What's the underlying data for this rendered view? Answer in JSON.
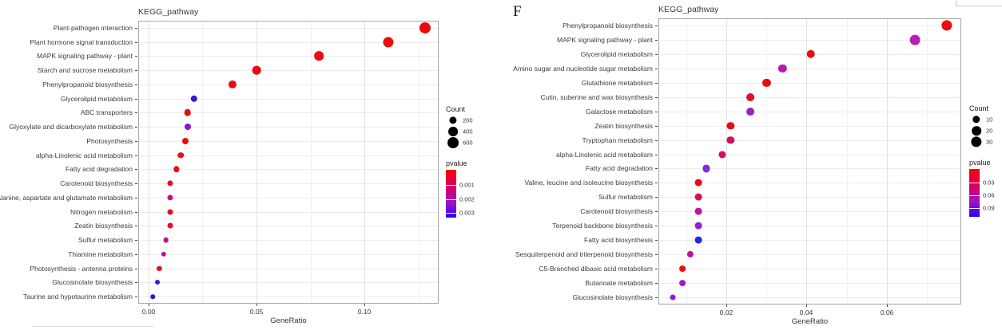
{
  "figure": {
    "panel_label": "F",
    "background": "#ffffff"
  },
  "chart_data": [
    {
      "type": "scatter",
      "title": "KEGG_pathway",
      "xlabel": "GeneRatio",
      "ylabel": "",
      "grid": true,
      "legend_position": "right",
      "xlim": [
        -0.0048,
        0.1344
      ],
      "x_major_ticks": [
        0.0,
        0.05,
        0.1
      ],
      "x_major_tick_labels": [
        "0.00",
        "0.05",
        "0.10"
      ],
      "x_minor_ticks": [
        0.025,
        0.075,
        0.125
      ],
      "legend": {
        "count_title": "Count",
        "count_items": [
          {
            "label": "200",
            "count": 200
          },
          {
            "label": "400",
            "count": 400
          },
          {
            "label": "600",
            "count": 600
          }
        ],
        "pvalue_title": "pvalue",
        "pvalue_tick_labels": [
          "0.001",
          "0.002",
          "0.003"
        ],
        "gradient_colors": [
          "#FB0007",
          "#D4006A",
          "#9A14C9",
          "#2A00F5"
        ]
      },
      "points": [
        {
          "pathway": "Plant-pathogen interaction",
          "gene_ratio": 0.128,
          "count": 620,
          "pvalue": 0.0002,
          "color": "#EC0B0B"
        },
        {
          "pathway": "Plant hormone signal transduction",
          "gene_ratio": 0.111,
          "count": 520,
          "pvalue": 0.0002,
          "color": "#EC0B0B"
        },
        {
          "pathway": "MAPK signaling pathway - plant",
          "gene_ratio": 0.079,
          "count": 380,
          "pvalue": 0.0003,
          "color": "#EB0C0E"
        },
        {
          "pathway": "Starch and sucrose metabolism",
          "gene_ratio": 0.05,
          "count": 300,
          "pvalue": 0.0003,
          "color": "#EA0C10"
        },
        {
          "pathway": "Phenylpropanoid biosynthesis",
          "gene_ratio": 0.039,
          "count": 260,
          "pvalue": 0.0004,
          "color": "#EA0D12"
        },
        {
          "pathway": "Glycerolipid metabolism",
          "gene_ratio": 0.021,
          "count": 150,
          "pvalue": 0.0029,
          "color": "#3A13DB"
        },
        {
          "pathway": "ABC transporters",
          "gene_ratio": 0.018,
          "count": 160,
          "pvalue": 0.0004,
          "color": "#E90D10"
        },
        {
          "pathway": "Glyoxylate and dicarboxylate metabolism",
          "gene_ratio": 0.018,
          "count": 130,
          "pvalue": 0.0026,
          "color": "#8812D6"
        },
        {
          "pathway": "Photosynthesis",
          "gene_ratio": 0.017,
          "count": 130,
          "pvalue": 0.0004,
          "color": "#E80D12"
        },
        {
          "pathway": "alpha-Linolenic acid metabolism",
          "gene_ratio": 0.015,
          "count": 110,
          "pvalue": 0.0005,
          "color": "#E80D12"
        },
        {
          "pathway": "Fatty acid degradation",
          "gene_ratio": 0.013,
          "count": 100,
          "pvalue": 0.0005,
          "color": "#E70E15"
        },
        {
          "pathway": "Carotenoid biosynthesis",
          "gene_ratio": 0.01,
          "count": 90,
          "pvalue": 0.0007,
          "color": "#E30E27"
        },
        {
          "pathway": "Alanine, aspartate and glutamate metabolism",
          "gene_ratio": 0.01,
          "count": 90,
          "pvalue": 0.0016,
          "color": "#C70D84"
        },
        {
          "pathway": "Nitrogen metabolism",
          "gene_ratio": 0.01,
          "count": 85,
          "pvalue": 0.0006,
          "color": "#E50D20"
        },
        {
          "pathway": "Zeatin biosynthesis",
          "gene_ratio": 0.01,
          "count": 80,
          "pvalue": 0.0007,
          "color": "#E30E2B"
        },
        {
          "pathway": "Sulfur metabolism",
          "gene_ratio": 0.008,
          "count": 70,
          "pvalue": 0.0015,
          "color": "#C90C8A"
        },
        {
          "pathway": "Thiamine metabolism",
          "gene_ratio": 0.007,
          "count": 60,
          "pvalue": 0.0017,
          "color": "#C10E97"
        },
        {
          "pathway": "Photosynthesis - antenna proteins",
          "gene_ratio": 0.005,
          "count": 55,
          "pvalue": 0.0006,
          "color": "#E40F1F"
        },
        {
          "pathway": "Glucosinolate biosynthesis",
          "gene_ratio": 0.004,
          "count": 45,
          "pvalue": 0.0028,
          "color": "#2B23E2"
        },
        {
          "pathway": "Taurine and hypotaurine metabolism",
          "gene_ratio": 0.002,
          "count": 35,
          "pvalue": 0.003,
          "color": "#3311E0"
        }
      ]
    },
    {
      "type": "scatter",
      "title": "KEGG_pathway",
      "xlabel": "GeneRatio",
      "ylabel": "",
      "grid": true,
      "legend_position": "right",
      "xlim": [
        0.003,
        0.0786
      ],
      "x_major_ticks": [
        0.02,
        0.04,
        0.06
      ],
      "x_major_tick_labels": [
        "0.02",
        "0.04",
        "0.06"
      ],
      "x_minor_ticks": [
        0.01,
        0.03,
        0.05,
        0.07
      ],
      "legend": {
        "count_title": "Count",
        "count_items": [
          {
            "label": "10",
            "count": 10
          },
          {
            "label": "20",
            "count": 20
          },
          {
            "label": "30",
            "count": 30
          }
        ],
        "pvalue_title": "pvalue",
        "pvalue_tick_labels": [
          "0.03",
          "0.06",
          "0.09"
        ],
        "gradient_colors": [
          "#FB0007",
          "#D4006A",
          "#9A14C9",
          "#2A00F5"
        ]
      },
      "points": [
        {
          "pathway": "Phenylpropanoid biosynthesis",
          "gene_ratio": 0.075,
          "count": 30,
          "pvalue": 0.01,
          "color": "#ED0A0A"
        },
        {
          "pathway": "MAPK signaling pathway - plant",
          "gene_ratio": 0.067,
          "count": 27,
          "pvalue": 0.07,
          "color": "#B51FB9"
        },
        {
          "pathway": "Glycerolipid metabolism",
          "gene_ratio": 0.041,
          "count": 15,
          "pvalue": 0.015,
          "color": "#EA0C0F"
        },
        {
          "pathway": "Amino sugar and nucleotide sugar metabolism",
          "gene_ratio": 0.034,
          "count": 14,
          "pvalue": 0.065,
          "color": "#B618B6"
        },
        {
          "pathway": "Glutathione metabolism",
          "gene_ratio": 0.03,
          "count": 13,
          "pvalue": 0.02,
          "color": "#E80D14"
        },
        {
          "pathway": "Cutin, suberine and wax biosynthesis",
          "gene_ratio": 0.026,
          "count": 12,
          "pvalue": 0.03,
          "color": "#E20C26"
        },
        {
          "pathway": "Galactose metabolism",
          "gene_ratio": 0.026,
          "count": 12,
          "pvalue": 0.075,
          "color": "#9323CD"
        },
        {
          "pathway": "Zeatin biosynthesis",
          "gene_ratio": 0.021,
          "count": 10,
          "pvalue": 0.02,
          "color": "#E70C12"
        },
        {
          "pathway": "Tryptophan metabolism",
          "gene_ratio": 0.021,
          "count": 10,
          "pvalue": 0.04,
          "color": "#D80E54"
        },
        {
          "pathway": "alpha-Linolenic acid metabolism",
          "gene_ratio": 0.019,
          "count": 9,
          "pvalue": 0.045,
          "color": "#D30C62"
        },
        {
          "pathway": "Fatty acid degradation",
          "gene_ratio": 0.015,
          "count": 9,
          "pvalue": 0.08,
          "color": "#8229D9"
        },
        {
          "pathway": "Valine, leucine and isoleucine biosynthesis",
          "gene_ratio": 0.013,
          "count": 8,
          "pvalue": 0.02,
          "color": "#E90C10"
        },
        {
          "pathway": "Sulfur metabolism",
          "gene_ratio": 0.013,
          "count": 8,
          "pvalue": 0.04,
          "color": "#D70F55"
        },
        {
          "pathway": "Carotenoid biosynthesis",
          "gene_ratio": 0.013,
          "count": 8,
          "pvalue": 0.055,
          "color": "#BE11A1"
        },
        {
          "pathway": "Terpenoid backbone biosynthesis",
          "gene_ratio": 0.013,
          "count": 8,
          "pvalue": 0.075,
          "color": "#8C23D2"
        },
        {
          "pathway": "Fatty acid biosynthesis",
          "gene_ratio": 0.013,
          "count": 8,
          "pvalue": 0.095,
          "color": "#2A25E5"
        },
        {
          "pathway": "Sesquiterpenoid and triterpenoid biosynthesis",
          "gene_ratio": 0.011,
          "count": 6,
          "pvalue": 0.05,
          "color": "#C3109A"
        },
        {
          "pathway": "C5-Branched dibasic acid metabolism",
          "gene_ratio": 0.009,
          "count": 5,
          "pvalue": 0.02,
          "color": "#E80D0D"
        },
        {
          "pathway": "Butanoate metabolism",
          "gene_ratio": 0.009,
          "count": 5,
          "pvalue": 0.07,
          "color": "#9C1BC8"
        },
        {
          "pathway": "Glucosinolate biosynthesis",
          "gene_ratio": 0.0065,
          "count": 3,
          "pvalue": 0.07,
          "color": "#9D18C7"
        }
      ]
    }
  ]
}
